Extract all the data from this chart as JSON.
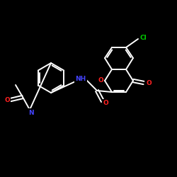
{
  "background_color": "#000000",
  "bond_color": "#ffffff",
  "atom_colors": {
    "N": "#4444ff",
    "O": "#ff2222",
    "Cl": "#00cc00",
    "C": "#ffffff"
  },
  "figsize": [
    2.5,
    2.5
  ],
  "dpi": 100
}
